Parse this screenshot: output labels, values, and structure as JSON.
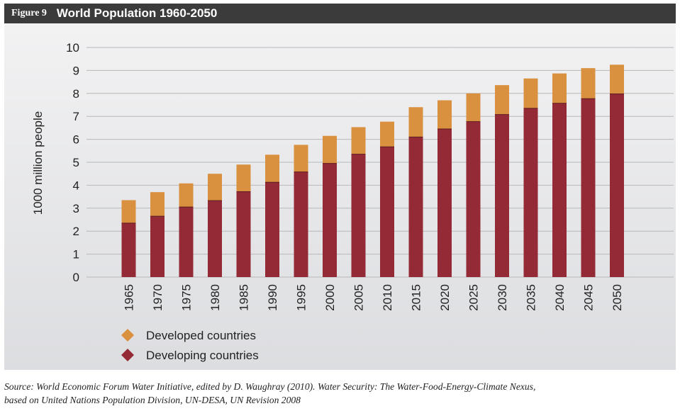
{
  "header": {
    "figure_label": "Figure 9",
    "title": "World Population 1960-2050",
    "background_color": "#3b3b3b"
  },
  "source": {
    "line1": "Source: World Economic Forum Water Initiative, edited by D. Waughray (2010). Water Security: The Water-Food-Energy-Climate Nexus,",
    "line2": "based on United Nations Population Division, UN-DESA, UN Revision 2008"
  },
  "chart_data": {
    "type": "bar",
    "stacked": true,
    "categories": [
      "1965",
      "1970",
      "1975",
      "1980",
      "1985",
      "1990",
      "1995",
      "2000",
      "2005",
      "2010",
      "2015",
      "2020",
      "2025",
      "2030",
      "2035",
      "2040",
      "2045",
      "2050"
    ],
    "series": [
      {
        "name": "Developing countries",
        "color": "#952a37",
        "values": [
          2.35,
          2.65,
          3.05,
          3.33,
          3.72,
          4.13,
          4.58,
          4.95,
          5.35,
          5.67,
          6.1,
          6.45,
          6.77,
          7.08,
          7.35,
          7.57,
          7.77,
          7.98
        ]
      },
      {
        "name": "Developed countries",
        "color": "#d9913f",
        "values": [
          1.0,
          1.05,
          1.03,
          1.17,
          1.18,
          1.2,
          1.18,
          1.2,
          1.18,
          1.1,
          1.3,
          1.25,
          1.23,
          1.28,
          1.3,
          1.3,
          1.33,
          1.27
        ]
      }
    ],
    "ylabel": "1000 million people",
    "ylim": [
      0,
      10
    ],
    "yticks": [
      "0",
      "1",
      "2",
      "3",
      "4",
      "5",
      "6",
      "7",
      "8",
      "9",
      "10"
    ],
    "grid": true,
    "legend_position": "bottom-left",
    "legend": [
      {
        "label": "Developed countries",
        "color": "#d9913f"
      },
      {
        "label": "Developing countries",
        "color": "#952a37"
      }
    ]
  }
}
